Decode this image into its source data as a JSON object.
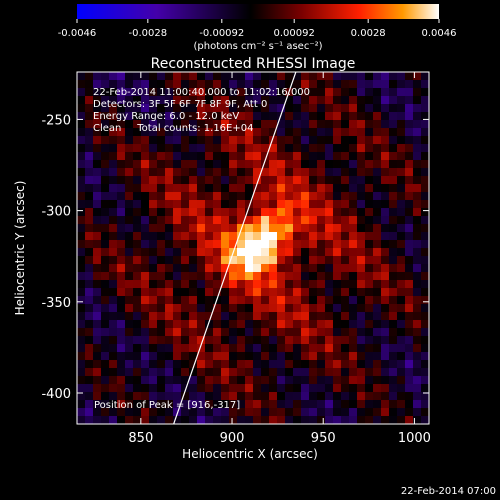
{
  "chart_data": {
    "type": "heatmap",
    "title": "Reconstructed RHESSI Image",
    "xlabel": "Heliocentric X (arcsec)",
    "ylabel": "Heliocentric Y (arcsec)",
    "xlim": [
      815,
      1008
    ],
    "ylim": [
      -417,
      -224
    ],
    "x_ticks": [
      850,
      900,
      950,
      1000
    ],
    "y_ticks": [
      -250,
      -300,
      -350,
      -400
    ],
    "colorbar": {
      "range": [
        -0.0046,
        0.0046
      ],
      "tick_values": [
        -0.0046,
        -0.0028,
        -0.00092,
        0.00092,
        0.0028,
        0.0046
      ],
      "tick_labels": [
        "-0.0046",
        "-0.0028",
        "-0.00092",
        "0.00092",
        "0.0028",
        "0.0046"
      ],
      "unit_label": "(photons cm⁻² s⁻¹ asec⁻²)",
      "colors": [
        "#0000ff",
        "#4400aa",
        "#000000",
        "#7a0000",
        "#ff2000",
        "#ff9900",
        "#ffffff"
      ]
    },
    "annotations": [
      "22-Feb-2014 11:00:40.000 to 11:02:16.000",
      "Detectors: 3F 5F 6F 7F 8F 9F, Att 0",
      "Energy Range: 6.0 - 12.0 keV",
      "Clean     Total counts: 1.16E+04"
    ],
    "peak_label": "Position of Peak = [916,-317]",
    "peak": {
      "x": 916,
      "y": -317,
      "value": 0.0046
    },
    "limb_line": [
      [
        868,
        -417
      ],
      [
        935,
        -224
      ]
    ],
    "grid": false
  },
  "footer": {
    "timestamp": "22-Feb-2014 07:00"
  }
}
